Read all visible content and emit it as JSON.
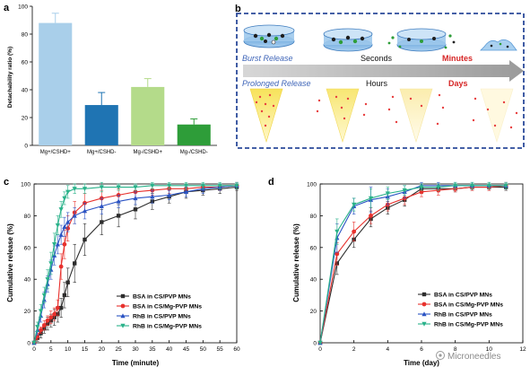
{
  "panel_labels": {
    "a": "a",
    "b": "b",
    "c": "c",
    "d": "d"
  },
  "colors": {
    "light_blue": "#a9cfea",
    "dark_blue": "#1f74b3",
    "light_green": "#b4db8a",
    "dark_green": "#2e9d39",
    "panel_border": "#2b4a9a",
    "arrow_gray": "#a3a3a3",
    "label_blue": "#3f65b8",
    "label_red": "#d62525",
    "series_black": "#2d2d2d",
    "series_red": "#e8312d",
    "series_blue": "#2b54c4",
    "series_green": "#2ab28a"
  },
  "schematic": {
    "burst_label": "Burst Release",
    "prolonged_label": "Prolonged Release",
    "seconds_label": "Seconds",
    "minutes_label": "Minutes",
    "hours_label": "Hours",
    "days_label": "Days"
  },
  "watermark": "Microneedles",
  "chart_data": [
    {
      "panel": "a",
      "type": "bar",
      "categories": [
        "Mg+/CSHD+",
        "Mg+/CSHD-",
        "Mg-/CSHD+",
        "Mg-/CSHD-"
      ],
      "values": [
        88,
        29,
        42,
        15
      ],
      "errors": [
        7,
        9,
        6,
        4
      ],
      "bar_colors": [
        "#a9cfea",
        "#1f74b3",
        "#b4db8a",
        "#2e9d39"
      ],
      "xlabel": "",
      "ylabel": "Detachability ratio (%)",
      "ylim": [
        0,
        100
      ],
      "yticks": [
        0,
        20,
        40,
        60,
        80,
        100
      ]
    },
    {
      "panel": "c",
      "type": "line",
      "xlabel": "Time (minute)",
      "ylabel": "Cumulative release (%)",
      "xlim": [
        0,
        60
      ],
      "ylim": [
        0,
        100
      ],
      "xticks": [
        0,
        5,
        10,
        15,
        20,
        25,
        30,
        35,
        40,
        45,
        50,
        55,
        60
      ],
      "yticks": [
        0,
        20,
        40,
        60,
        80,
        100
      ],
      "legend_position": "bottom-right",
      "series": [
        {
          "name": "BSA in CS/PVP MNs",
          "marker": "square",
          "x": [
            0,
            1,
            2,
            3,
            4,
            5,
            6,
            7,
            8,
            9,
            10,
            12,
            15,
            20,
            25,
            30,
            35,
            40,
            45,
            50,
            55,
            60
          ],
          "y": [
            0,
            3,
            6,
            9,
            12,
            14,
            16,
            18,
            22,
            30,
            38,
            50,
            65,
            76,
            80,
            84,
            89,
            92,
            95,
            96,
            97,
            98
          ],
          "err": [
            0,
            2,
            3,
            3,
            4,
            4,
            5,
            5,
            6,
            8,
            9,
            12,
            10,
            8,
            7,
            6,
            5,
            4,
            4,
            3,
            3,
            2
          ]
        },
        {
          "name": "BSA in CS/Mg-PVP MNs",
          "marker": "circle",
          "x": [
            0,
            1,
            2,
            3,
            4,
            5,
            6,
            7,
            8,
            9,
            10,
            12,
            15,
            20,
            25,
            30,
            35,
            40,
            45,
            50,
            55,
            60
          ],
          "y": [
            0,
            4,
            8,
            11,
            14,
            16,
            18,
            22,
            48,
            62,
            72,
            82,
            88,
            91,
            93,
            95,
            96,
            97,
            97,
            98,
            98,
            99
          ],
          "err": [
            0,
            2,
            2,
            3,
            3,
            4,
            4,
            5,
            8,
            9,
            8,
            7,
            6,
            5,
            4,
            4,
            3,
            3,
            3,
            2,
            2,
            2
          ]
        },
        {
          "name": "RhB in CS/PVP MNs",
          "marker": "triangle-up",
          "x": [
            0,
            1,
            2,
            3,
            4,
            5,
            6,
            7,
            8,
            9,
            10,
            12,
            15,
            20,
            25,
            30,
            35,
            40,
            45,
            50,
            55,
            60
          ],
          "y": [
            0,
            8,
            17,
            27,
            37,
            46,
            55,
            62,
            68,
            73,
            76,
            80,
            83,
            86,
            89,
            91,
            92,
            93,
            95,
            97,
            98,
            99
          ],
          "err": [
            0,
            3,
            4,
            5,
            5,
            6,
            6,
            6,
            6,
            6,
            6,
            5,
            5,
            5,
            4,
            4,
            4,
            3,
            3,
            3,
            2,
            2
          ]
        },
        {
          "name": "RhB in CS/Mg-PVP MNs",
          "marker": "triangle-down",
          "x": [
            0,
            1,
            2,
            3,
            4,
            5,
            6,
            7,
            8,
            9,
            10,
            12,
            15,
            20,
            25,
            30,
            35,
            40,
            45,
            50,
            55,
            60
          ],
          "y": [
            0,
            10,
            20,
            30,
            40,
            50,
            62,
            74,
            84,
            91,
            95,
            97,
            97,
            98,
            98,
            98,
            99,
            99,
            99,
            99,
            99,
            99
          ],
          "err": [
            0,
            3,
            4,
            5,
            6,
            7,
            7,
            6,
            5,
            4,
            4,
            3,
            3,
            3,
            2,
            2,
            2,
            2,
            2,
            2,
            2,
            2
          ]
        }
      ]
    },
    {
      "panel": "d",
      "type": "line",
      "xlabel": "Time (day)",
      "ylabel": "Cumulative release (%)",
      "xlim": [
        0,
        12
      ],
      "ylim": [
        0,
        100
      ],
      "xticks": [
        0,
        2,
        4,
        6,
        8,
        10,
        12
      ],
      "yticks": [
        0,
        20,
        40,
        60,
        80,
        100
      ],
      "legend_position": "bottom-right",
      "series": [
        {
          "name": "BSA in CS/PVP MNs",
          "marker": "square",
          "x": [
            0,
            1,
            2,
            3,
            4,
            5,
            6,
            7,
            8,
            9,
            10,
            11
          ],
          "y": [
            0,
            50,
            65,
            78,
            85,
            90,
            97,
            97,
            97,
            98,
            98,
            98
          ],
          "err": [
            0,
            7,
            5,
            5,
            4,
            4,
            3,
            2,
            2,
            2,
            2,
            2
          ]
        },
        {
          "name": "BSA in CS/Mg-PVP MNs",
          "marker": "circle",
          "x": [
            0,
            1,
            2,
            3,
            4,
            5,
            6,
            7,
            8,
            9,
            10,
            11
          ],
          "y": [
            0,
            56,
            70,
            80,
            87,
            91,
            95,
            96,
            97,
            98,
            98,
            99
          ],
          "err": [
            0,
            7,
            6,
            5,
            4,
            4,
            3,
            3,
            2,
            2,
            2,
            2
          ]
        },
        {
          "name": "RhB in CS/PVP MNs",
          "marker": "triangle-up",
          "x": [
            0,
            1,
            2,
            3,
            4,
            5,
            6,
            7,
            8,
            9,
            10,
            11
          ],
          "y": [
            0,
            66,
            86,
            90,
            92,
            95,
            99,
            99,
            99,
            99,
            99,
            99
          ],
          "err": [
            0,
            9,
            5,
            8,
            5,
            4,
            2,
            2,
            2,
            2,
            2,
            2
          ]
        },
        {
          "name": "RhB in CS/Mg-PVP MNs",
          "marker": "triangle-down",
          "x": [
            0,
            1,
            2,
            3,
            4,
            5,
            6,
            7,
            8,
            9,
            10,
            11
          ],
          "y": [
            0,
            70,
            87,
            91,
            94,
            96,
            98,
            98,
            99,
            99,
            99,
            99
          ],
          "err": [
            0,
            8,
            4,
            6,
            4,
            3,
            2,
            2,
            2,
            2,
            2,
            2
          ]
        }
      ]
    }
  ]
}
